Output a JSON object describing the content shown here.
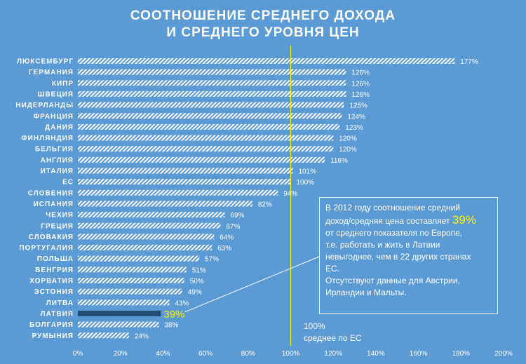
{
  "title_line1": "СООТНОШЕНИЕ СРЕДНЕГО ДОХОДА",
  "title_line2": "И СРЕДНЕГО УРОВНЯ ЦЕН",
  "colors": {
    "background": "#5b9bd5",
    "bar_stripe": "#ffffff",
    "highlight_bar": "#1f4e79",
    "highlight_text": "#fff200",
    "reference_line": "#f2f200"
  },
  "annotation": {
    "line1": "В 2012 году соотношение средний",
    "line2_pre": "доход/средняя цена составляет",
    "line2_value": "39%",
    "line3": "от среднего показателя по Европе,",
    "line4": "т.е. работать и жить в Латвии",
    "line5": "невыгоднее, чем в 22 других странах",
    "line6": "ЕС.",
    "line7": "Отсутствуют данные для Австрии,",
    "line8": "Ирландии и Мальты."
  },
  "reference": {
    "value_label": "100%",
    "label": "среднее по ЕС",
    "value": 100
  },
  "chart_data": {
    "type": "bar",
    "orientation": "horizontal",
    "title": "СООТНОШЕНИЕ СРЕДНЕГО ДОХОДА И СРЕДНЕГО УРОВНЯ ЦЕН",
    "xlabel": "",
    "ylabel": "",
    "xlim": [
      0,
      200
    ],
    "x_ticks": [
      "0%",
      "20%",
      "40%",
      "60%",
      "80%",
      "100%",
      "120%",
      "140%",
      "160%",
      "180%",
      "200%"
    ],
    "categories": [
      "ЛЮКСЕМБУРГ",
      "ГЕРМАНИЯ",
      "КИПР",
      "ШВЕЦИЯ",
      "НИДЕРЛАНДЫ",
      "ФРАНЦИЯ",
      "ДАНИЯ",
      "ФИНЛЯНДИЯ",
      "БЕЛЬГИЯ",
      "АНГЛИЯ",
      "ИТАЛИЯ",
      "ЕС",
      "СЛОВЕНИЯ",
      "ИСПАНИЯ",
      "ЧЕХИЯ",
      "ГРЕЦИЯ",
      "СЛОВАКИЯ",
      "ПОРТУГАЛИЯ",
      "ПОЛЬША",
      "ВЕНГРИЯ",
      "ХОРВАТИЯ",
      "ЭСТОНИЯ",
      "ЛИТВА",
      "ЛАТВИЯ",
      "БОЛГАРИЯ",
      "РУМЫНИЯ"
    ],
    "values": [
      177,
      126,
      126,
      126,
      125,
      124,
      123,
      120,
      120,
      116,
      101,
      100,
      94,
      82,
      69,
      67,
      64,
      63,
      57,
      51,
      50,
      49,
      43,
      39,
      38,
      24
    ],
    "value_labels": [
      "177%",
      "126%",
      "126%",
      "126%",
      "125%",
      "124%",
      "123%",
      "120%",
      "120%",
      "116%",
      "101%",
      "100%",
      "94%",
      "82%",
      "69%",
      "67%",
      "64%",
      "63%",
      "57%",
      "51%",
      "50%",
      "49%",
      "43%",
      "39%",
      "38%",
      "24%"
    ],
    "highlight": "ЛАТВИЯ",
    "reference_line": 100,
    "grid": false,
    "legend": "none"
  }
}
